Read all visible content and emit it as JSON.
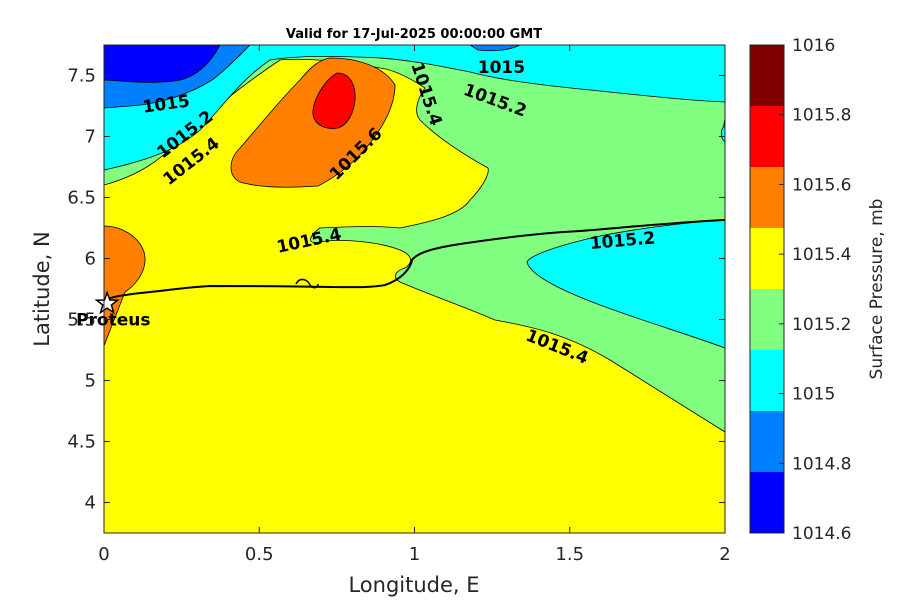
{
  "chart_data": {
    "type": "contour_map",
    "title": "Valid for 17-Jul-2025 00:00:00 GMT",
    "xlabel": "Longitude, E",
    "ylabel": "Latitude, N",
    "xlim": [
      0,
      2
    ],
    "ylim": [
      3.75,
      7.75
    ],
    "x_ticks": [
      "0",
      "0.5",
      "1",
      "1.5",
      "2"
    ],
    "y_ticks": [
      "4",
      "4.5",
      "5",
      "5.5",
      "6",
      "6.5",
      "7",
      "7.5"
    ],
    "colorbar": {
      "title": "Surface Pressure, mb",
      "levels": [
        "1016",
        "1015.8",
        "1015.6",
        "1015.4",
        "1015.2",
        "1015",
        "1014.8",
        "1014.6"
      ],
      "colors": [
        "#800000",
        "#ff0000",
        "#ff8000",
        "#ffff00",
        "#80ff80",
        "#00ffff",
        "#0080ff",
        "#0000ff"
      ]
    },
    "contour_labels": [
      {
        "text": "1015",
        "x": 0.2,
        "y": 7.27,
        "angle": -8
      },
      {
        "text": "1015.2",
        "x": 0.26,
        "y": 7.02,
        "angle": -38
      },
      {
        "text": "1015.4",
        "x": 0.28,
        "y": 6.8,
        "angle": -38
      },
      {
        "text": "1015.6",
        "x": 0.81,
        "y": 6.86,
        "angle": -45
      },
      {
        "text": "1015.4",
        "x": 1.04,
        "y": 7.35,
        "angle": 72
      },
      {
        "text": "1015",
        "x": 1.28,
        "y": 7.57,
        "angle": 0
      },
      {
        "text": "1015.2",
        "x": 1.26,
        "y": 7.3,
        "angle": 20
      },
      {
        "text": "1015.4",
        "x": 0.66,
        "y": 6.15,
        "angle": -12
      },
      {
        "text": "1015.2",
        "x": 1.67,
        "y": 6.15,
        "angle": -5
      },
      {
        "text": "1015.4",
        "x": 1.46,
        "y": 5.28,
        "angle": 22
      }
    ],
    "marker": {
      "label": "Proteus",
      "lon": 0.01,
      "lat": 5.63
    }
  }
}
